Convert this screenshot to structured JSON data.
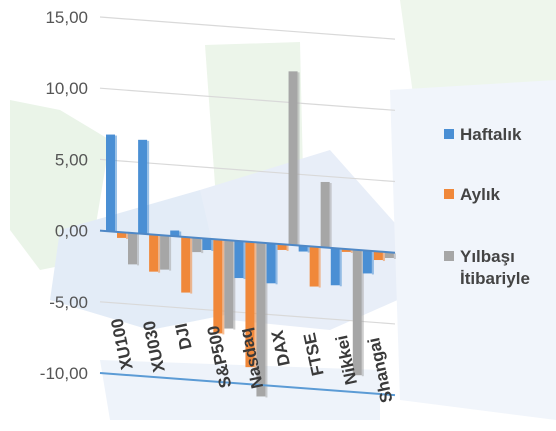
{
  "chart_data": {
    "type": "bar",
    "categories": [
      "XU100",
      "XU030",
      "DJI",
      "S&P500",
      "Nasdaq",
      "DAX",
      "FTSE",
      "Nikkei",
      "Shangai"
    ],
    "series": [
      {
        "name": "Haftalık",
        "values": [
          6.8,
          6.6,
          0.4,
          -0.8,
          -2.6,
          -2.8,
          -0.4,
          -2.6,
          -1.6
        ],
        "color": "#4a8fd4"
      },
      {
        "name": "Aylık",
        "values": [
          -0.4,
          -2.6,
          -3.9,
          -6.6,
          -8.8,
          -0.4,
          -2.8,
          -0.2,
          -0.6
        ],
        "color": "#f0883a"
      },
      {
        "name": "Yılbaşı\nİtibariyle",
        "values": [
          -2.2,
          -2.4,
          -1.0,
          -6.2,
          -10.8,
          12.2,
          4.6,
          -8.8,
          -0.4
        ],
        "color": "#a6a6a6"
      }
    ],
    "y_ticks": [
      "15,00",
      "10,00",
      "5,00",
      "0,00",
      "-5,00",
      "-10,00"
    ],
    "ylim": [
      -10,
      15
    ],
    "xlabel": "",
    "ylabel": "",
    "title": "",
    "grid": true,
    "legend": "right"
  }
}
